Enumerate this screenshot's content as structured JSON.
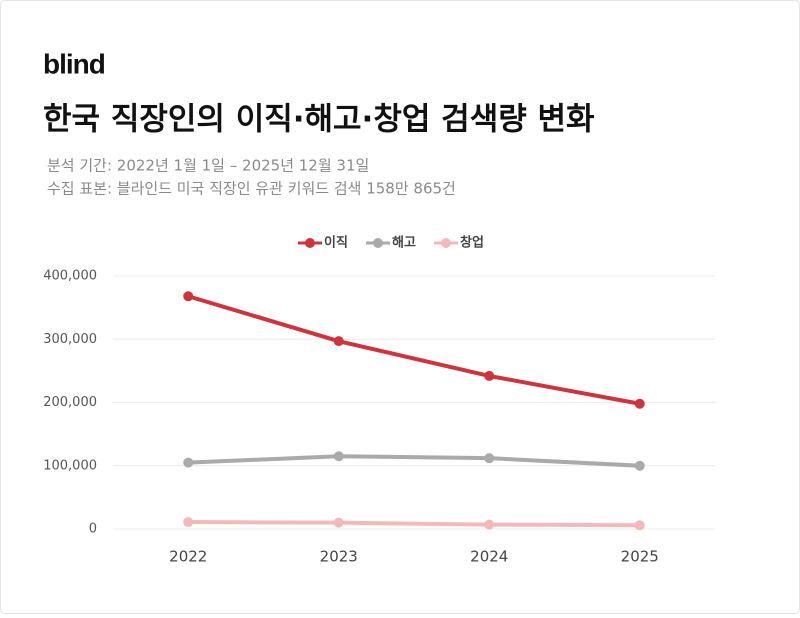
{
  "brand": "blind",
  "chart_data": {
    "type": "line",
    "title": "한국 직장인의 이직·해고·창업 검색량 변화",
    "subtitle": [
      "분석 기간: 2022년 1월 1일 – 2025년 12월 31일",
      "수집 표본: 블라인드 미국 직장인 유관 키워드 검색 158만 865건"
    ],
    "categories": [
      "2022",
      "2023",
      "2024",
      "2025"
    ],
    "series": [
      {
        "name": "이직",
        "color": "#cf333c",
        "values": [
          368000,
          297000,
          242000,
          198000
        ]
      },
      {
        "name": "해고",
        "color": "#aaaaaa",
        "values": [
          105000,
          115000,
          112000,
          100000
        ]
      },
      {
        "name": "창업",
        "color": "#f5b8b8",
        "values": [
          11000,
          10000,
          7000,
          6000
        ]
      }
    ],
    "ylim": [
      0,
      400000
    ],
    "yticks": [
      0,
      {
        "value": 100000,
        "label": "100,000"
      },
      {
        "value": 200000,
        "label": "200,000"
      },
      {
        "value": 300000,
        "label": "300,000"
      },
      {
        "value": 400000,
        "label": "400,000"
      }
    ],
    "grid": true,
    "legend": "top"
  }
}
